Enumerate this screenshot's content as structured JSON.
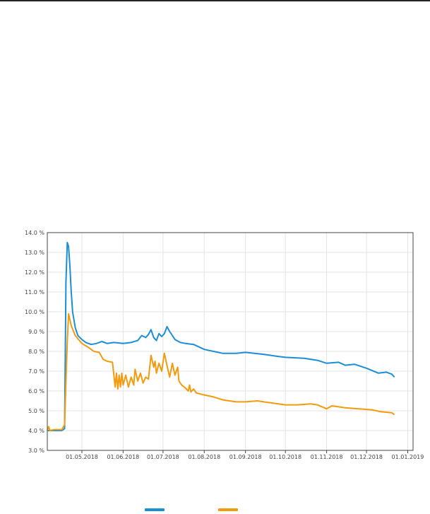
{
  "colors": {
    "series_1": "#1a8fd8",
    "series_2": "#f29b0f",
    "grid": "#e3e3e3",
    "frame": "#444444"
  },
  "chart_data": {
    "type": "line",
    "title": "",
    "xlabel": "",
    "ylabel": "",
    "ylim": [
      3.0,
      14.0
    ],
    "xlim": [
      "2018-04-05",
      "2019-01-05"
    ],
    "grid": true,
    "legend": "bottom",
    "y_ticks": [
      "3.0 %",
      "4.0 %",
      "5.0 %",
      "6.0 %",
      "7.0 %",
      "8.0 %",
      "9.0 %",
      "10.0 %",
      "11.0 %",
      "12.0 %",
      "13.0 %",
      "14.0 %"
    ],
    "x_ticks": [
      {
        "date": "2018-05-01",
        "label": "01.05.2018"
      },
      {
        "date": "2018-06-01",
        "label": "01.06.2018"
      },
      {
        "date": "2018-07-01",
        "label": "01.07.2018"
      },
      {
        "date": "2018-08-01",
        "label": "01.08.2018"
      },
      {
        "date": "2018-09-01",
        "label": "01.09.2018"
      },
      {
        "date": "2018-10-01",
        "label": "01.10.2018"
      },
      {
        "date": "2018-11-01",
        "label": "01.11.2018"
      },
      {
        "date": "2018-12-01",
        "label": "01.12.2018"
      },
      {
        "date": "2019-01-01",
        "label": "01.01.2019"
      }
    ],
    "series": [
      {
        "color": "#1a8fd8",
        "points": [
          [
            "2018-04-05",
            4.0
          ],
          [
            "2018-04-10",
            4.0
          ],
          [
            "2018-04-16",
            4.0
          ],
          [
            "2018-04-18",
            4.1
          ],
          [
            "2018-04-19",
            11.5
          ],
          [
            "2018-04-20",
            13.5
          ],
          [
            "2018-04-21",
            13.3
          ],
          [
            "2018-04-22",
            12.3
          ],
          [
            "2018-04-23",
            11.0
          ],
          [
            "2018-04-24",
            10.0
          ],
          [
            "2018-04-26",
            9.2
          ],
          [
            "2018-04-28",
            8.8
          ],
          [
            "2018-05-01",
            8.6
          ],
          [
            "2018-05-04",
            8.45
          ],
          [
            "2018-05-08",
            8.35
          ],
          [
            "2018-05-12",
            8.4
          ],
          [
            "2018-05-16",
            8.5
          ],
          [
            "2018-05-20",
            8.4
          ],
          [
            "2018-05-25",
            8.45
          ],
          [
            "2018-06-01",
            8.4
          ],
          [
            "2018-06-07",
            8.45
          ],
          [
            "2018-06-12",
            8.55
          ],
          [
            "2018-06-15",
            8.8
          ],
          [
            "2018-06-18",
            8.7
          ],
          [
            "2018-06-20",
            8.85
          ],
          [
            "2018-06-22",
            9.1
          ],
          [
            "2018-06-24",
            8.7
          ],
          [
            "2018-06-26",
            8.55
          ],
          [
            "2018-06-28",
            8.9
          ],
          [
            "2018-06-30",
            8.75
          ],
          [
            "2018-07-02",
            8.9
          ],
          [
            "2018-07-04",
            9.25
          ],
          [
            "2018-07-06",
            9.0
          ],
          [
            "2018-07-08",
            8.8
          ],
          [
            "2018-07-10",
            8.6
          ],
          [
            "2018-07-14",
            8.45
          ],
          [
            "2018-07-18",
            8.4
          ],
          [
            "2018-07-24",
            8.35
          ],
          [
            "2018-08-01",
            8.1
          ],
          [
            "2018-08-08",
            8.0
          ],
          [
            "2018-08-15",
            7.9
          ],
          [
            "2018-08-25",
            7.9
          ],
          [
            "2018-09-01",
            7.95
          ],
          [
            "2018-09-15",
            7.85
          ],
          [
            "2018-09-25",
            7.75
          ],
          [
            "2018-10-01",
            7.7
          ],
          [
            "2018-10-15",
            7.65
          ],
          [
            "2018-10-25",
            7.55
          ],
          [
            "2018-11-01",
            7.4
          ],
          [
            "2018-11-10",
            7.45
          ],
          [
            "2018-11-15",
            7.3
          ],
          [
            "2018-11-22",
            7.35
          ],
          [
            "2018-12-01",
            7.15
          ],
          [
            "2018-12-10",
            6.9
          ],
          [
            "2018-12-16",
            6.95
          ],
          [
            "2018-12-20",
            6.85
          ],
          [
            "2018-12-22",
            6.7
          ]
        ]
      },
      {
        "color": "#f29b0f",
        "points": [
          [
            "2018-04-05",
            4.0
          ],
          [
            "2018-04-06",
            4.2
          ],
          [
            "2018-04-07",
            4.0
          ],
          [
            "2018-04-10",
            4.05
          ],
          [
            "2018-04-16",
            4.05
          ],
          [
            "2018-04-18",
            4.3
          ],
          [
            "2018-04-19",
            6.5
          ],
          [
            "2018-04-20",
            8.5
          ],
          [
            "2018-04-21",
            9.9
          ],
          [
            "2018-04-23",
            9.3
          ],
          [
            "2018-04-26",
            8.8
          ],
          [
            "2018-05-01",
            8.4
          ],
          [
            "2018-05-06",
            8.2
          ],
          [
            "2018-05-10",
            8.0
          ],
          [
            "2018-05-14",
            7.95
          ],
          [
            "2018-05-17",
            7.6
          ],
          [
            "2018-05-20",
            7.5
          ],
          [
            "2018-05-24",
            7.45
          ],
          [
            "2018-05-26",
            6.2
          ],
          [
            "2018-05-27",
            6.9
          ],
          [
            "2018-05-28",
            6.1
          ],
          [
            "2018-05-29",
            6.8
          ],
          [
            "2018-05-30",
            6.2
          ],
          [
            "2018-05-31",
            6.9
          ],
          [
            "2018-06-01",
            6.3
          ],
          [
            "2018-06-03",
            6.8
          ],
          [
            "2018-06-05",
            6.2
          ],
          [
            "2018-06-07",
            6.7
          ],
          [
            "2018-06-09",
            6.3
          ],
          [
            "2018-06-10",
            7.1
          ],
          [
            "2018-06-12",
            6.5
          ],
          [
            "2018-06-14",
            6.9
          ],
          [
            "2018-06-16",
            6.4
          ],
          [
            "2018-06-18",
            6.7
          ],
          [
            "2018-06-20",
            6.6
          ],
          [
            "2018-06-22",
            7.8
          ],
          [
            "2018-06-24",
            7.2
          ],
          [
            "2018-06-25",
            7.5
          ],
          [
            "2018-06-26",
            6.9
          ],
          [
            "2018-06-28",
            7.4
          ],
          [
            "2018-06-30",
            7.0
          ],
          [
            "2018-07-02",
            7.9
          ],
          [
            "2018-07-04",
            7.3
          ],
          [
            "2018-07-06",
            6.7
          ],
          [
            "2018-07-08",
            7.4
          ],
          [
            "2018-07-10",
            6.8
          ],
          [
            "2018-07-12",
            7.2
          ],
          [
            "2018-07-13",
            6.5
          ],
          [
            "2018-07-15",
            6.3
          ],
          [
            "2018-07-17",
            6.2
          ],
          [
            "2018-07-20",
            6.0
          ],
          [
            "2018-07-21",
            6.3
          ],
          [
            "2018-07-22",
            5.95
          ],
          [
            "2018-07-24",
            6.1
          ],
          [
            "2018-07-26",
            5.9
          ],
          [
            "2018-08-01",
            5.8
          ],
          [
            "2018-08-08",
            5.7
          ],
          [
            "2018-08-15",
            5.55
          ],
          [
            "2018-08-25",
            5.45
          ],
          [
            "2018-09-01",
            5.45
          ],
          [
            "2018-09-10",
            5.5
          ],
          [
            "2018-09-20",
            5.4
          ],
          [
            "2018-10-01",
            5.3
          ],
          [
            "2018-10-10",
            5.3
          ],
          [
            "2018-10-20",
            5.35
          ],
          [
            "2018-10-25",
            5.3
          ],
          [
            "2018-11-01",
            5.1
          ],
          [
            "2018-11-05",
            5.25
          ],
          [
            "2018-11-15",
            5.15
          ],
          [
            "2018-11-25",
            5.1
          ],
          [
            "2018-12-05",
            5.05
          ],
          [
            "2018-12-12",
            4.95
          ],
          [
            "2018-12-20",
            4.9
          ],
          [
            "2018-12-22",
            4.8
          ]
        ]
      }
    ]
  }
}
